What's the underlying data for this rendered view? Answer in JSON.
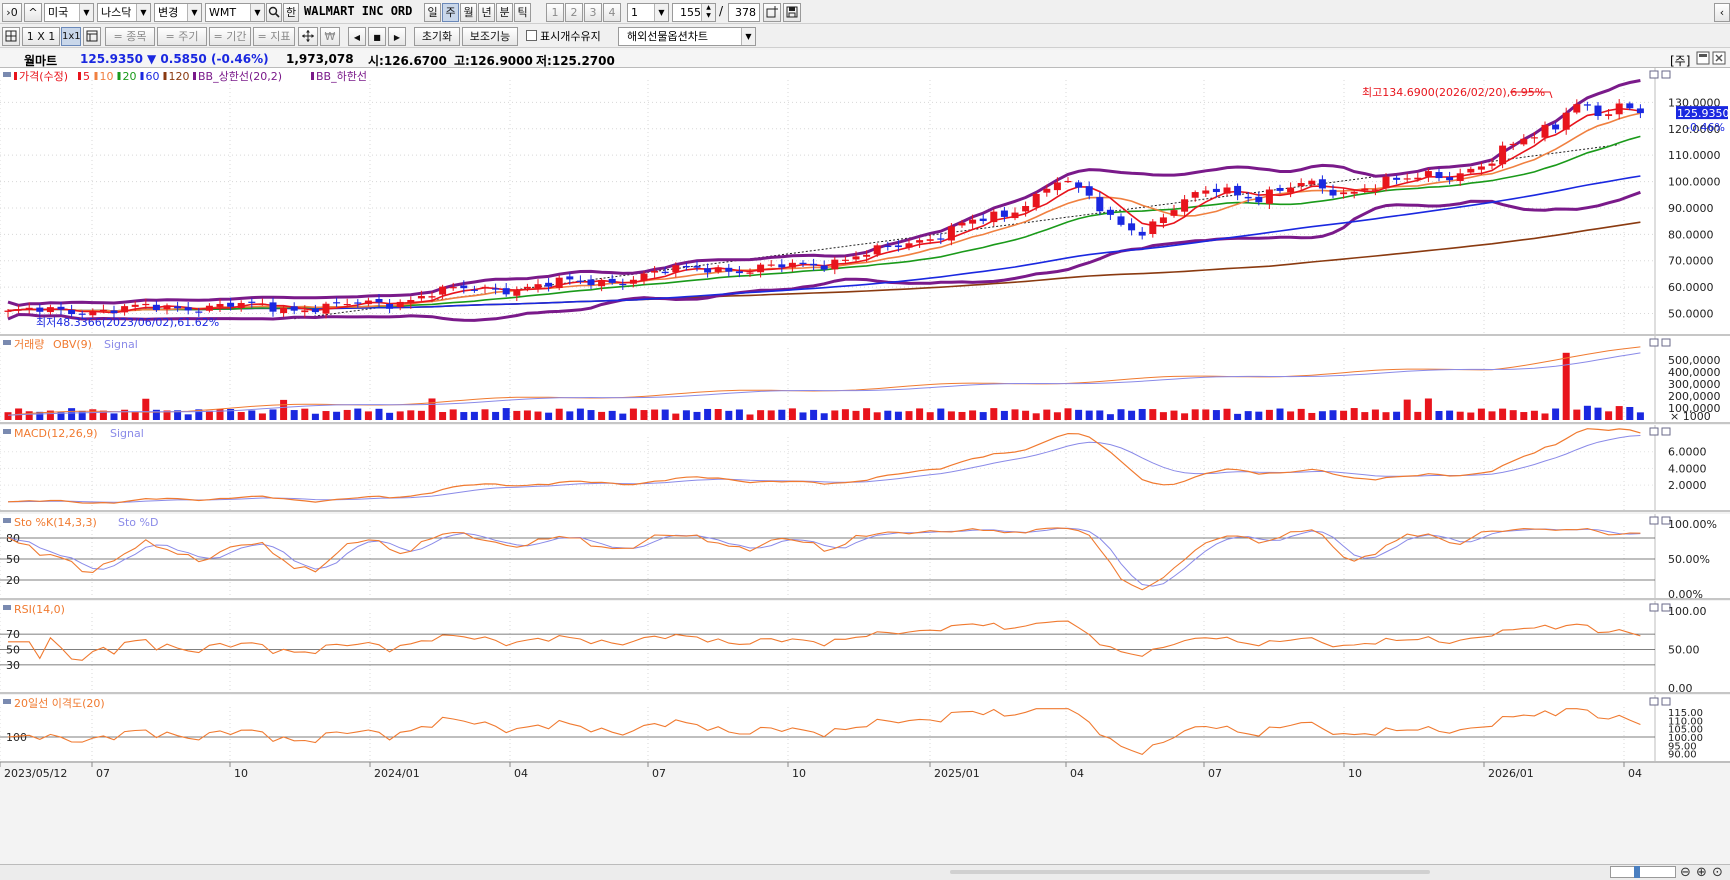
{
  "toolbar": {
    "first_btn": "›0",
    "up_btn": "^",
    "country": "미국",
    "exchange": "나스닥",
    "change_btn": "변경",
    "ticker": "WMT",
    "search_icon": "magnifier-icon",
    "han_btn": "한",
    "stock_name": "WALMART INC ORD",
    "periods": [
      "일",
      "주",
      "월",
      "년",
      "분",
      "틱"
    ],
    "active_period": "주",
    "num_tabs": [
      "1",
      "2",
      "3",
      "4"
    ],
    "interval": "1",
    "count": "155",
    "total": "378",
    "right_icon": "‹"
  },
  "toolbar2": {
    "grid_icon": "grid-icon",
    "layout_1x1": "1 X 1",
    "layout_sel": "1x1",
    "btn_stock": "= 종목",
    "btn_period": "= 주기",
    "btn_range": "= 기간",
    "btn_indicator": "= 지표",
    "reset_btn": "초기화",
    "aux_btn": "보조기능",
    "keep_label": "표시개수유지",
    "chart_select": "해외선물옵션차트"
  },
  "info": {
    "name": "월마트",
    "price": "125.9350",
    "change": "▼ 0.5850",
    "change_pct": "(-0.46%)",
    "volume": "1,973,078",
    "open": "시:126.6700",
    "high": "고:126.9000",
    "low": "저:125.2700",
    "right_label": "[주]"
  },
  "colors": {
    "up": "#e8141c",
    "down": "#1a28e0",
    "ma5": "#e8141c",
    "ma10": "#f08040",
    "ma20": "#1a9a1a",
    "ma60": "#1a28e0",
    "ma120": "#8a3a10",
    "bb": "#7a1a8a",
    "osc": "#f07a30",
    "signal": "#8a8ae8"
  },
  "chart_data": {
    "type": "line",
    "x_axis_labels": [
      "2023/05/12",
      "07",
      "10",
      "2024/01",
      "04",
      "07",
      "10",
      "2025/01",
      "04",
      "07",
      "10",
      "2026/01",
      "04"
    ],
    "panels": [
      {
        "id": "price",
        "legend": [
          "가격(수정)",
          "5",
          "10",
          "20",
          "60",
          "120",
          "BB_상한선(20,2)",
          "BB_하한선"
        ],
        "y_ticks": [
          "130.0000",
          "120.0000",
          "110.0000",
          "100.0000",
          "90.0000",
          "80.0000",
          "70.0000",
          "60.0000",
          "50.0000"
        ],
        "ylim": [
          43,
          140
        ],
        "current_price_label": "125.9350",
        "current_pct_label": "-0.46%",
        "high_annotation": "최고134.6900(2026/02/20),6.95%",
        "low_annotation": "최저48.3366(2023/06/02),61.62%",
        "close_anchors": [
          [
            0,
            50.5
          ],
          [
            10,
            51.5
          ],
          [
            20,
            53
          ],
          [
            27,
            52
          ],
          [
            36,
            54
          ],
          [
            40,
            58
          ],
          [
            48,
            60
          ],
          [
            58,
            63
          ],
          [
            66,
            68
          ],
          [
            70,
            66
          ],
          [
            76,
            69
          ],
          [
            82,
            73
          ],
          [
            86,
            78
          ],
          [
            90,
            84
          ],
          [
            94,
            86
          ],
          [
            99,
            102
          ],
          [
            102,
            93
          ],
          [
            104,
            85
          ],
          [
            107,
            82
          ],
          [
            110,
            90
          ],
          [
            114,
            97
          ],
          [
            118,
            95
          ],
          [
            122,
            98
          ],
          [
            126,
            96
          ],
          [
            128,
            99
          ],
          [
            132,
            100
          ],
          [
            136,
            103
          ],
          [
            140,
            108
          ],
          [
            143,
            115
          ],
          [
            146,
            122
          ],
          [
            147,
            129
          ],
          [
            148,
            131
          ],
          [
            150,
            125
          ],
          [
            152,
            126
          ],
          [
            154,
            125.9
          ]
        ]
      },
      {
        "id": "volume",
        "legend": [
          "거래량",
          "OBV(9)",
          "Signal"
        ],
        "y_ticks": [
          "500,0000",
          "400,0000",
          "300,0000",
          "200,0000",
          "100,0000"
        ],
        "unit_label": "× 1000",
        "ylim": [
          0,
          600000
        ],
        "volume_spike": 560000
      },
      {
        "id": "macd",
        "legend": [
          "MACD(12,26,9)",
          "Signal"
        ],
        "y_ticks": [
          "6.0000",
          "4.0000",
          "2.0000"
        ],
        "ylim": [
          -0.5,
          8
        ]
      },
      {
        "id": "stochastic",
        "legend": [
          "Sto %K(14,3,3)",
          "Sto %D"
        ],
        "y_ticks": [
          "100.00%",
          "50.00%",
          "0.00%"
        ],
        "levels": [
          "80",
          "50",
          "20"
        ],
        "ylim": [
          0,
          100
        ]
      },
      {
        "id": "rsi",
        "legend": [
          "RSI(14,0)"
        ],
        "y_ticks": [
          "100.00",
          "50.00",
          "0.00"
        ],
        "levels": [
          "70",
          "50",
          "30"
        ],
        "ylim": [
          0,
          100
        ]
      },
      {
        "id": "disparity",
        "legend": [
          "20일선 이격도(20)"
        ],
        "y_ticks": [
          "115.00",
          "110.00",
          "105.00",
          "100.00",
          "95.00",
          "90.00"
        ],
        "levels": [
          "100"
        ],
        "ylim": [
          88,
          118
        ]
      }
    ]
  }
}
